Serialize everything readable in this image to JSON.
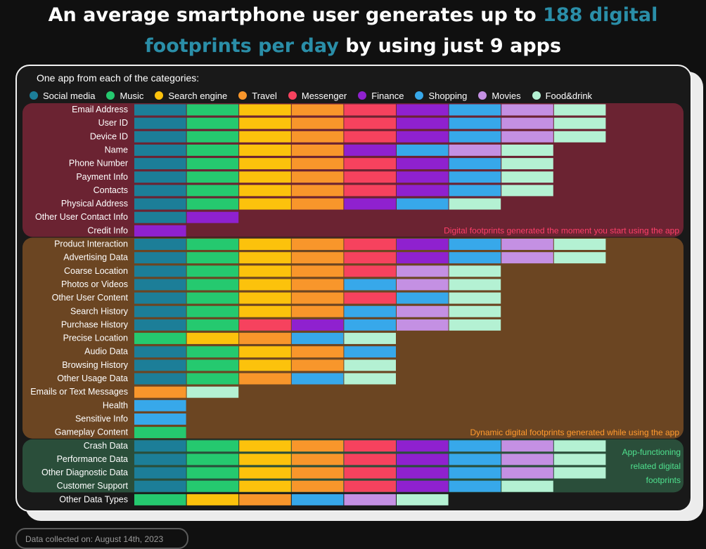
{
  "title": {
    "line1_prefix": "An average smartphone user generates up to ",
    "line1_highlight": "188 digital",
    "line2_highlight": "footprints per day",
    "line2_suffix": " by using just 9 apps"
  },
  "intro_text": "One app from each of the categories:",
  "footer_text": "Data collected on: August 14th, 2023",
  "colors": {
    "title_highlight": "#2a8ea8",
    "section_app_start": "#6b2332",
    "section_dynamic": "#6b4522",
    "section_functioning": "#2a4e3a",
    "note_app_start": "#ff3f6a",
    "note_dynamic": "#ff9a2e",
    "note_functioning": "#4fe08e"
  },
  "chart_data": {
    "type": "table",
    "legend": [
      {
        "key": "social",
        "label": "Social media",
        "color": "#1c7e98"
      },
      {
        "key": "music",
        "label": "Music",
        "color": "#25c96f"
      },
      {
        "key": "search",
        "label": "Search engine",
        "color": "#fcc20c"
      },
      {
        "key": "travel",
        "label": "Travel",
        "color": "#f8962b"
      },
      {
        "key": "messenger",
        "label": "Messenger",
        "color": "#f6425e"
      },
      {
        "key": "finance",
        "label": "Finance",
        "color": "#8f21cf"
      },
      {
        "key": "shopping",
        "label": "Shopping",
        "color": "#37a8ea"
      },
      {
        "key": "movies",
        "label": "Movies",
        "color": "#c490e3"
      },
      {
        "key": "food",
        "label": "Food&drink",
        "color": "#b4f1d3"
      }
    ],
    "sections": [
      {
        "note": "Digital footprints generated the moment you start using the app",
        "rows": [
          {
            "label": "Email Address",
            "apps": [
              "social",
              "music",
              "search",
              "travel",
              "messenger",
              "finance",
              "shopping",
              "movies",
              "food"
            ]
          },
          {
            "label": "User ID",
            "apps": [
              "social",
              "music",
              "search",
              "travel",
              "messenger",
              "finance",
              "shopping",
              "movies",
              "food"
            ]
          },
          {
            "label": "Device ID",
            "apps": [
              "social",
              "music",
              "search",
              "travel",
              "messenger",
              "finance",
              "shopping",
              "movies",
              "food"
            ]
          },
          {
            "label": "Name",
            "apps": [
              "social",
              "music",
              "search",
              "travel",
              "finance",
              "shopping",
              "movies",
              "food"
            ]
          },
          {
            "label": "Phone Number",
            "apps": [
              "social",
              "music",
              "search",
              "travel",
              "messenger",
              "finance",
              "shopping",
              "food"
            ]
          },
          {
            "label": "Payment Info",
            "apps": [
              "social",
              "music",
              "search",
              "travel",
              "messenger",
              "finance",
              "shopping",
              "food"
            ]
          },
          {
            "label": "Contacts",
            "apps": [
              "social",
              "music",
              "search",
              "travel",
              "messenger",
              "finance",
              "shopping",
              "food"
            ]
          },
          {
            "label": "Physical Address",
            "apps": [
              "social",
              "music",
              "search",
              "travel",
              "finance",
              "shopping",
              "food"
            ]
          },
          {
            "label": "Other User Contact Info",
            "apps": [
              "social",
              "finance"
            ]
          },
          {
            "label": "Credit Info",
            "apps": [
              "finance"
            ]
          }
        ]
      },
      {
        "note": "Dynamic digital footprints generated while using the app",
        "rows": [
          {
            "label": "Product Interaction",
            "apps": [
              "social",
              "music",
              "search",
              "travel",
              "messenger",
              "finance",
              "shopping",
              "movies",
              "food"
            ]
          },
          {
            "label": "Advertising Data",
            "apps": [
              "social",
              "music",
              "search",
              "travel",
              "messenger",
              "finance",
              "shopping",
              "movies",
              "food"
            ]
          },
          {
            "label": "Coarse Location",
            "apps": [
              "social",
              "music",
              "search",
              "travel",
              "messenger",
              "movies",
              "food"
            ]
          },
          {
            "label": "Photos or Videos",
            "apps": [
              "social",
              "music",
              "search",
              "travel",
              "shopping",
              "movies",
              "food"
            ]
          },
          {
            "label": "Other User Content",
            "apps": [
              "social",
              "music",
              "search",
              "travel",
              "messenger",
              "shopping",
              "food"
            ]
          },
          {
            "label": "Search History",
            "apps": [
              "social",
              "music",
              "search",
              "travel",
              "shopping",
              "movies",
              "food"
            ]
          },
          {
            "label": "Purchase History",
            "apps": [
              "social",
              "music",
              "messenger",
              "finance",
              "shopping",
              "movies",
              "food"
            ]
          },
          {
            "label": "Precise Location",
            "apps": [
              "music",
              "search",
              "travel",
              "shopping",
              "food"
            ]
          },
          {
            "label": "Audio Data",
            "apps": [
              "social",
              "music",
              "search",
              "travel",
              "shopping"
            ]
          },
          {
            "label": "Browsing History",
            "apps": [
              "social",
              "music",
              "search",
              "travel",
              "food"
            ]
          },
          {
            "label": "Other Usage Data",
            "apps": [
              "social",
              "music",
              "travel",
              "shopping",
              "food"
            ]
          },
          {
            "label": "Emails or Text Messages",
            "apps": [
              "travel",
              "food"
            ]
          },
          {
            "label": "Health",
            "apps": [
              "shopping"
            ]
          },
          {
            "label": "Sensitive Info",
            "apps": [
              "shopping"
            ]
          },
          {
            "label": "Gameplay Content",
            "apps": [
              "music"
            ]
          }
        ]
      },
      {
        "note": "App-functioning related digital footprints",
        "rows": [
          {
            "label": "Crash Data",
            "apps": [
              "social",
              "music",
              "search",
              "travel",
              "messenger",
              "finance",
              "shopping",
              "movies",
              "food"
            ]
          },
          {
            "label": "Performance Data",
            "apps": [
              "social",
              "music",
              "search",
              "travel",
              "messenger",
              "finance",
              "shopping",
              "movies",
              "food"
            ]
          },
          {
            "label": "Other Diagnostic Data",
            "apps": [
              "social",
              "music",
              "search",
              "travel",
              "messenger",
              "finance",
              "shopping",
              "movies",
              "food"
            ]
          },
          {
            "label": "Customer Support",
            "apps": [
              "social",
              "music",
              "search",
              "travel",
              "messenger",
              "finance",
              "shopping",
              "food"
            ]
          }
        ]
      }
    ],
    "extra_rows": [
      {
        "label": "Other Data Types",
        "apps": [
          "music",
          "search",
          "travel",
          "shopping",
          "movies",
          "food"
        ]
      }
    ]
  }
}
